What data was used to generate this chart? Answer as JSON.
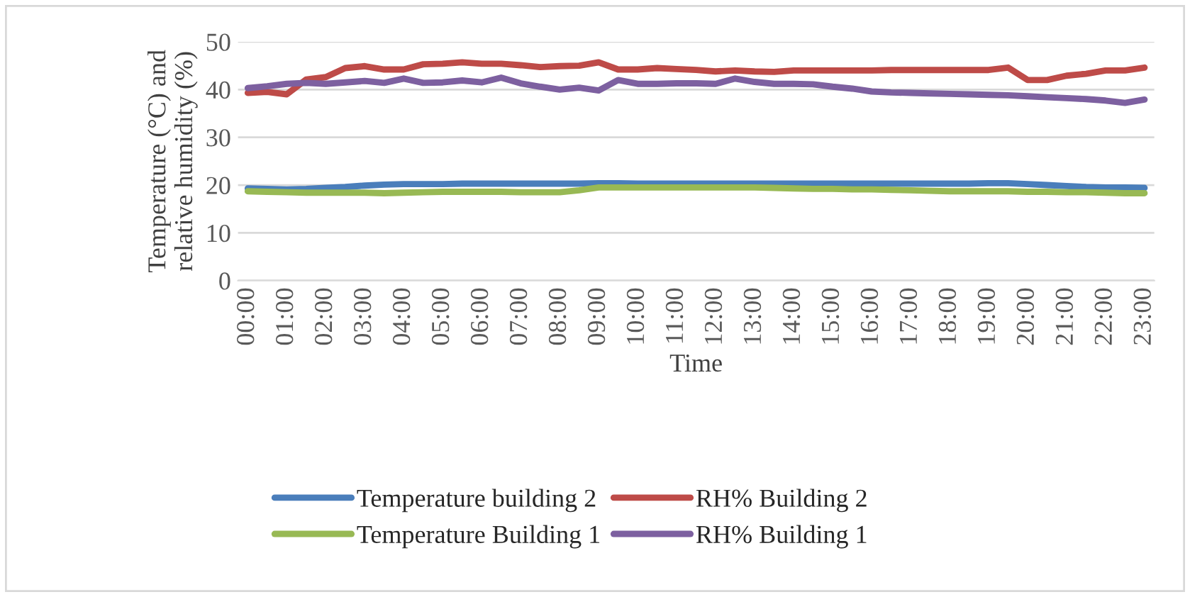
{
  "chart_data": {
    "type": "line",
    "xlabel": "Time",
    "ylabel": "Temperature (°C) and relative humidity (%)",
    "categories": [
      "00:00",
      null,
      "01:00",
      null,
      "02:00",
      null,
      "03:00",
      null,
      "04:00",
      null,
      "05:00",
      null,
      "06:00",
      null,
      "07:00",
      null,
      "08:00",
      null,
      "09:00",
      null,
      "10:00",
      null,
      "11:00",
      null,
      "12:00",
      null,
      "13:00",
      null,
      "14:00",
      null,
      "15:00",
      null,
      "16:00",
      null,
      "17:00",
      null,
      "18:00",
      null,
      "19:00",
      null,
      "20:00",
      null,
      "21:00",
      null,
      "22:00",
      null,
      "23:00"
    ],
    "series": [
      {
        "name": "Temperature building 2",
        "color": "#4a7ebb",
        "values": [
          19.3,
          19.2,
          19.1,
          19.2,
          19.4,
          19.6,
          19.9,
          20.1,
          20.2,
          20.2,
          20.2,
          20.3,
          20.3,
          20.3,
          20.3,
          20.3,
          20.3,
          20.3,
          20.4,
          20.4,
          20.3,
          20.3,
          20.3,
          20.3,
          20.3,
          20.3,
          20.3,
          20.3,
          20.3,
          20.3,
          20.3,
          20.3,
          20.3,
          20.3,
          20.3,
          20.3,
          20.3,
          20.3,
          20.4,
          20.4,
          20.2,
          20.0,
          19.8,
          19.6,
          19.5,
          19.5,
          19.4
        ]
      },
      {
        "name": "RH% Building 2",
        "color": "#be4b48",
        "values": [
          39.3,
          39.5,
          39.0,
          42.1,
          42.6,
          44.5,
          44.9,
          44.2,
          44.2,
          45.3,
          45.4,
          45.7,
          45.4,
          45.4,
          45.1,
          44.7,
          44.9,
          45.0,
          45.7,
          44.2,
          44.2,
          44.5,
          44.3,
          44.1,
          43.8,
          44.0,
          43.8,
          43.7,
          44.0,
          44.0,
          44.0,
          44.0,
          44.0,
          44.1,
          44.1,
          44.1,
          44.1,
          44.1,
          44.1,
          44.6,
          42.0,
          42.0,
          42.9,
          43.3,
          44.0,
          44.0,
          44.6
        ]
      },
      {
        "name": "Temperature Building 1",
        "color": "#98b954",
        "values": [
          18.7,
          18.6,
          18.5,
          18.4,
          18.4,
          18.4,
          18.4,
          18.3,
          18.4,
          18.5,
          18.6,
          18.6,
          18.6,
          18.6,
          18.5,
          18.5,
          18.5,
          18.9,
          19.5,
          19.5,
          19.5,
          19.5,
          19.5,
          19.5,
          19.5,
          19.5,
          19.5,
          19.4,
          19.3,
          19.2,
          19.2,
          19.1,
          19.1,
          19.0,
          18.9,
          18.8,
          18.7,
          18.7,
          18.7,
          18.7,
          18.6,
          18.6,
          18.5,
          18.5,
          18.4,
          18.3,
          18.3
        ]
      },
      {
        "name": "RH% Building 1",
        "color": "#7d60a0",
        "values": [
          40.3,
          40.7,
          41.2,
          41.4,
          41.2,
          41.5,
          41.8,
          41.4,
          42.3,
          41.4,
          41.5,
          41.9,
          41.5,
          42.5,
          41.3,
          40.6,
          40.0,
          40.4,
          39.8,
          42.0,
          41.2,
          41.2,
          41.3,
          41.3,
          41.2,
          42.3,
          41.6,
          41.2,
          41.2,
          41.1,
          40.6,
          40.2,
          39.6,
          39.4,
          39.3,
          39.2,
          39.1,
          39.0,
          38.9,
          38.8,
          38.6,
          38.4,
          38.2,
          38.0,
          37.7,
          37.2,
          37.9
        ]
      }
    ],
    "ylim": [
      0,
      50
    ],
    "yticks": [
      0,
      10,
      20,
      30,
      40,
      50
    ],
    "grid": "y",
    "legend": "bottom",
    "marker": "none",
    "line_style": "solid"
  }
}
